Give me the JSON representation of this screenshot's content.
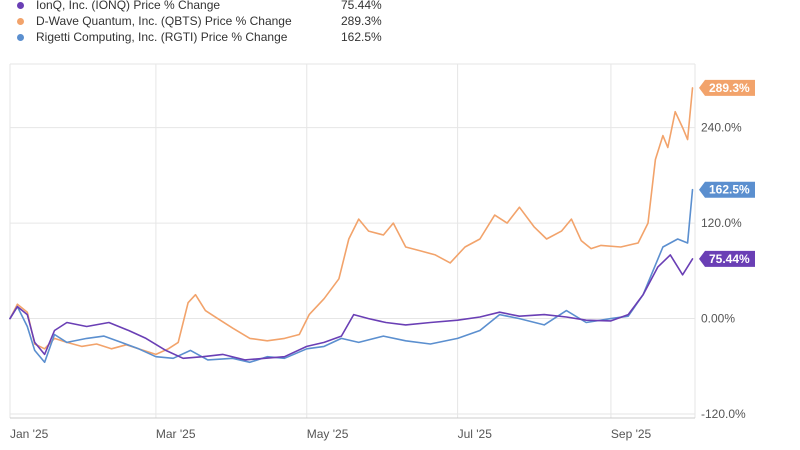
{
  "legend": {
    "items": [
      {
        "name": "IonQ, Inc. (IONQ) Price % Change",
        "value": "75.44%",
        "color": "#6a3fb5"
      },
      {
        "name": "D-Wave Quantum, Inc. (QBTS) Price % Change",
        "value": "289.3%",
        "color": "#f2a36b"
      },
      {
        "name": "Rigetti Computing, Inc. (RGTI) Price % Change",
        "value": "162.5%",
        "color": "#5b8fcf"
      }
    ]
  },
  "chart_data": {
    "type": "line",
    "title": "",
    "xlabel": "",
    "ylabel": "",
    "x_range": [
      "2025-01-01",
      "2025-10-05"
    ],
    "ylim": [
      -125,
      320
    ],
    "grid": true,
    "x_ticks": [
      {
        "label": "Jan '25",
        "date": "2025-01-01"
      },
      {
        "label": "Mar '25",
        "date": "2025-03-01"
      },
      {
        "label": "May '25",
        "date": "2025-05-01"
      },
      {
        "label": "Jul '25",
        "date": "2025-07-01"
      },
      {
        "label": "Sep '25",
        "date": "2025-09-01"
      }
    ],
    "y_ticks": [
      {
        "label": "240.0%",
        "value": 240
      },
      {
        "label": "120.0%",
        "value": 120
      },
      {
        "label": "0.00%",
        "value": 0
      },
      {
        "label": "-120.0%",
        "value": -120
      }
    ],
    "series": [
      {
        "name": "D-Wave Quantum, Inc. (QBTS) Price % Change",
        "color": "#f2a36b",
        "end_label": "289.3%",
        "points": [
          [
            "2025-01-01",
            0
          ],
          [
            "2025-01-04",
            18
          ],
          [
            "2025-01-08",
            8
          ],
          [
            "2025-01-11",
            -32
          ],
          [
            "2025-01-15",
            -38
          ],
          [
            "2025-01-19",
            -25
          ],
          [
            "2025-01-24",
            -30
          ],
          [
            "2025-01-30",
            -35
          ],
          [
            "2025-02-05",
            -32
          ],
          [
            "2025-02-11",
            -38
          ],
          [
            "2025-02-17",
            -33
          ],
          [
            "2025-02-24",
            -40
          ],
          [
            "2025-03-01",
            -45
          ],
          [
            "2025-03-06",
            -38
          ],
          [
            "2025-03-10",
            -30
          ],
          [
            "2025-03-14",
            20
          ],
          [
            "2025-03-17",
            30
          ],
          [
            "2025-03-21",
            10
          ],
          [
            "2025-03-26",
            0
          ],
          [
            "2025-04-01",
            -12
          ],
          [
            "2025-04-08",
            -25
          ],
          [
            "2025-04-15",
            -28
          ],
          [
            "2025-04-22",
            -25
          ],
          [
            "2025-04-28",
            -20
          ],
          [
            "2025-05-02",
            5
          ],
          [
            "2025-05-08",
            25
          ],
          [
            "2025-05-14",
            50
          ],
          [
            "2025-05-18",
            100
          ],
          [
            "2025-05-22",
            125
          ],
          [
            "2025-05-26",
            110
          ],
          [
            "2025-06-01",
            105
          ],
          [
            "2025-06-05",
            120
          ],
          [
            "2025-06-10",
            90
          ],
          [
            "2025-06-16",
            85
          ],
          [
            "2025-06-22",
            80
          ],
          [
            "2025-06-28",
            70
          ],
          [
            "2025-07-04",
            90
          ],
          [
            "2025-07-10",
            100
          ],
          [
            "2025-07-16",
            130
          ],
          [
            "2025-07-21",
            120
          ],
          [
            "2025-07-26",
            140
          ],
          [
            "2025-08-01",
            115
          ],
          [
            "2025-08-06",
            100
          ],
          [
            "2025-08-12",
            110
          ],
          [
            "2025-08-16",
            125
          ],
          [
            "2025-08-20",
            98
          ],
          [
            "2025-08-24",
            88
          ],
          [
            "2025-08-28",
            92
          ],
          [
            "2025-09-05",
            90
          ],
          [
            "2025-09-12",
            95
          ],
          [
            "2025-09-16",
            120
          ],
          [
            "2025-09-19",
            200
          ],
          [
            "2025-09-22",
            230
          ],
          [
            "2025-09-24",
            215
          ],
          [
            "2025-09-27",
            260
          ],
          [
            "2025-09-30",
            240
          ],
          [
            "2025-10-02",
            225
          ],
          [
            "2025-10-04",
            290
          ]
        ]
      },
      {
        "name": "Rigetti Computing, Inc. (RGTI) Price % Change",
        "color": "#5b8fcf",
        "end_label": "162.5%",
        "points": [
          [
            "2025-01-01",
            0
          ],
          [
            "2025-01-04",
            15
          ],
          [
            "2025-01-08",
            -10
          ],
          [
            "2025-01-11",
            -40
          ],
          [
            "2025-01-15",
            -55
          ],
          [
            "2025-01-19",
            -20
          ],
          [
            "2025-01-24",
            -30
          ],
          [
            "2025-02-01",
            -25
          ],
          [
            "2025-02-08",
            -22
          ],
          [
            "2025-02-15",
            -30
          ],
          [
            "2025-02-22",
            -38
          ],
          [
            "2025-03-01",
            -48
          ],
          [
            "2025-03-08",
            -50
          ],
          [
            "2025-03-15",
            -40
          ],
          [
            "2025-03-22",
            -52
          ],
          [
            "2025-04-01",
            -50
          ],
          [
            "2025-04-08",
            -55
          ],
          [
            "2025-04-15",
            -48
          ],
          [
            "2025-04-22",
            -50
          ],
          [
            "2025-05-01",
            -38
          ],
          [
            "2025-05-08",
            -35
          ],
          [
            "2025-05-15",
            -25
          ],
          [
            "2025-05-22",
            -30
          ],
          [
            "2025-06-01",
            -22
          ],
          [
            "2025-06-10",
            -28
          ],
          [
            "2025-06-20",
            -32
          ],
          [
            "2025-07-01",
            -25
          ],
          [
            "2025-07-10",
            -15
          ],
          [
            "2025-07-18",
            5
          ],
          [
            "2025-07-26",
            0
          ],
          [
            "2025-08-05",
            -8
          ],
          [
            "2025-08-14",
            10
          ],
          [
            "2025-08-22",
            -5
          ],
          [
            "2025-09-01",
            0
          ],
          [
            "2025-09-08",
            3
          ],
          [
            "2025-09-14",
            30
          ],
          [
            "2025-09-18",
            60
          ],
          [
            "2025-09-22",
            90
          ],
          [
            "2025-09-28",
            100
          ],
          [
            "2025-10-02",
            95
          ],
          [
            "2025-10-04",
            162
          ]
        ]
      },
      {
        "name": "IonQ, Inc. (IONQ) Price % Change",
        "color": "#6a3fb5",
        "end_label": "75.44%",
        "points": [
          [
            "2025-01-01",
            0
          ],
          [
            "2025-01-04",
            15
          ],
          [
            "2025-01-08",
            5
          ],
          [
            "2025-01-11",
            -30
          ],
          [
            "2025-01-15",
            -45
          ],
          [
            "2025-01-19",
            -15
          ],
          [
            "2025-01-24",
            -5
          ],
          [
            "2025-02-01",
            -10
          ],
          [
            "2025-02-10",
            -5
          ],
          [
            "2025-02-18",
            -15
          ],
          [
            "2025-02-25",
            -25
          ],
          [
            "2025-03-05",
            -40
          ],
          [
            "2025-03-12",
            -50
          ],
          [
            "2025-03-20",
            -48
          ],
          [
            "2025-03-28",
            -45
          ],
          [
            "2025-04-06",
            -52
          ],
          [
            "2025-04-14",
            -50
          ],
          [
            "2025-04-22",
            -48
          ],
          [
            "2025-05-01",
            -35
          ],
          [
            "2025-05-08",
            -30
          ],
          [
            "2025-05-15",
            -22
          ],
          [
            "2025-05-20",
            5
          ],
          [
            "2025-05-26",
            0
          ],
          [
            "2025-06-02",
            -5
          ],
          [
            "2025-06-10",
            -8
          ],
          [
            "2025-06-20",
            -5
          ],
          [
            "2025-07-01",
            -2
          ],
          [
            "2025-07-10",
            2
          ],
          [
            "2025-07-18",
            8
          ],
          [
            "2025-07-26",
            3
          ],
          [
            "2025-08-05",
            5
          ],
          [
            "2025-08-14",
            2
          ],
          [
            "2025-08-22",
            -2
          ],
          [
            "2025-09-01",
            -3
          ],
          [
            "2025-09-08",
            5
          ],
          [
            "2025-09-14",
            30
          ],
          [
            "2025-09-20",
            65
          ],
          [
            "2025-09-25",
            80
          ],
          [
            "2025-09-30",
            55
          ],
          [
            "2025-10-04",
            75
          ]
        ]
      }
    ]
  }
}
